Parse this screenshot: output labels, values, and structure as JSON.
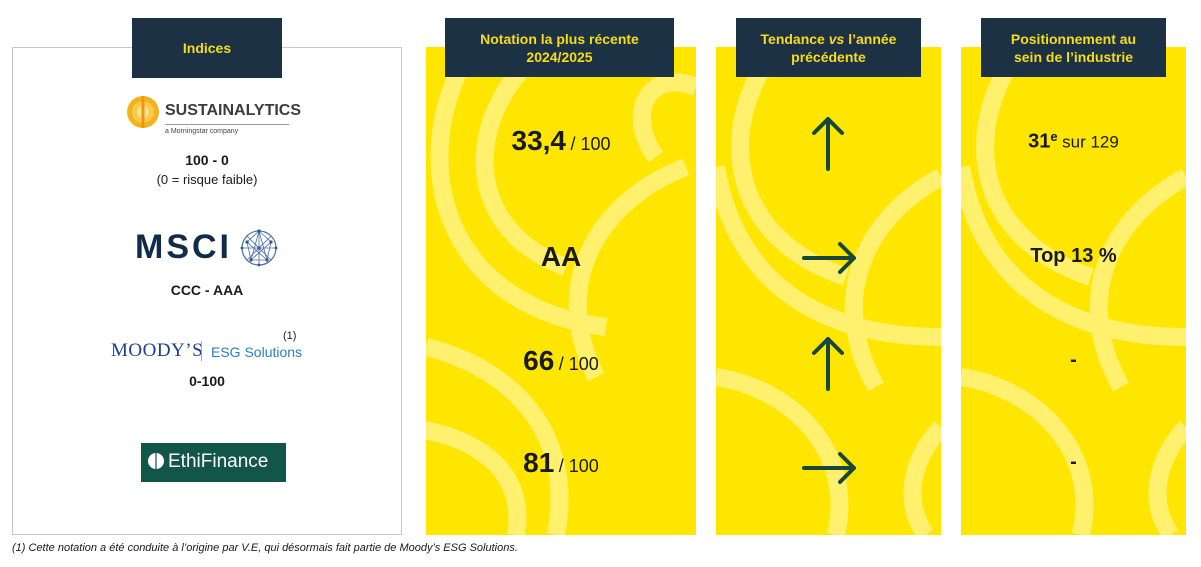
{
  "headers": {
    "indices": "Indices",
    "rating_line1": "Notation la plus récente",
    "rating_line2": "2024/2025",
    "trend_pre": "Tendance ",
    "trend_vs": "vs",
    "trend_post": " l’année",
    "trend_line2": "précédente",
    "position_line1": "Positionnement au",
    "position_line2": "sein de l’industrie"
  },
  "indices": [
    {
      "logo_name": "SUSTAINALYTICS",
      "logo_sub": "a Morningstar company",
      "scale": "100 - 0",
      "scale_note": "(0 = risque faible)",
      "rating_main": "33,4",
      "rating_suffix": "/ 100",
      "trend": "up",
      "position_main": "31",
      "position_sup": "e",
      "position_suffix": "sur 129"
    },
    {
      "logo_name": "MSCI",
      "scale": "CCC - AAA",
      "rating_main": "AA",
      "rating_suffix": "",
      "trend": "right",
      "position_main": "Top 13 %"
    },
    {
      "logo_name": "MOODY’S",
      "logo_sub": "ESG Solutions",
      "logo_note": "(1)",
      "scale": "0-100",
      "rating_main": "66",
      "rating_suffix": "/ 100",
      "trend": "up",
      "position_main": "-"
    },
    {
      "logo_name": "EthiFinance",
      "rating_main": "81",
      "rating_suffix": "/ 100",
      "trend": "right",
      "position_main": "-"
    }
  ],
  "footnote": "(1) Cette notation a été conduite à l’origine par V.E, qui désormais fait partie de Moody’s ESG Solutions.",
  "colors": {
    "header_bg": "#1d3144",
    "header_text": "#f6dc19",
    "panel_bg": "#ffe600",
    "arrow": "#17463a",
    "ethifinance_bg": "#12564a",
    "moodys_blue": "#1b3f8f",
    "esg_blue": "#2a7fc1",
    "msci_navy": "#0f2c48"
  },
  "icons": {
    "up": "arrow-up-icon",
    "right": "arrow-right-icon"
  }
}
